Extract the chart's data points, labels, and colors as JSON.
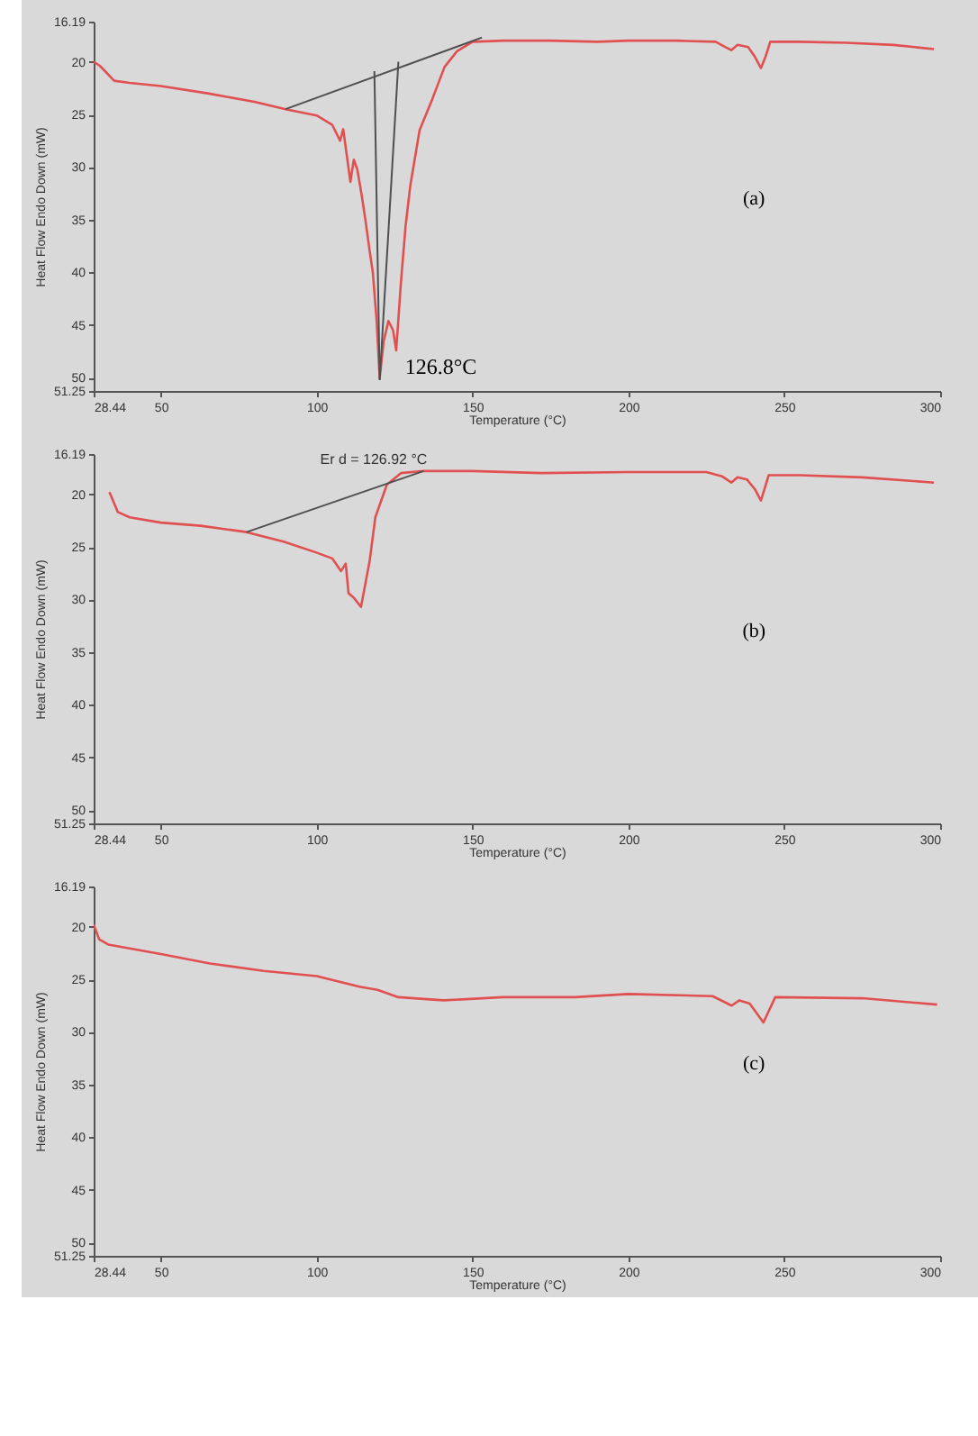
{
  "chart_data": [
    {
      "type": "line",
      "xlabel": "Temperature (°C)",
      "ylabel": "Heat Flow Endo Down (mW)",
      "series": [
        {
          "color": "#e05050",
          "x": [
            28.44,
            30.5,
            35,
            40,
            50,
            65,
            80,
            90,
            100,
            105,
            107.5,
            108.5,
            109.7,
            110.8,
            111.9,
            113,
            114.5,
            115.8,
            117,
            118,
            119.2,
            120.2,
            121.5,
            123,
            124.5,
            125.5,
            127,
            128.5,
            130,
            133,
            137,
            141,
            145,
            150,
            160,
            175,
            190,
            200,
            215,
            228,
            231,
            233,
            235,
            238.4,
            240.5,
            242.5,
            244,
            245.5,
            255,
            270,
            285,
            298
          ],
          "values": [
            20.0,
            20.4,
            21.8,
            22.0,
            22.3,
            23.0,
            23.8,
            24.5,
            25.1,
            26.0,
            27.5,
            26.4,
            29.0,
            31.4,
            29.3,
            30.2,
            32.8,
            35.4,
            38.0,
            40.0,
            44.5,
            50.0,
            46.5,
            44.6,
            45.5,
            47.4,
            41.0,
            35.6,
            31.8,
            26.5,
            23.6,
            20.5,
            19.0,
            18.1,
            18.0,
            18.0,
            18.1,
            18.0,
            18.0,
            18.1,
            18.6,
            18.9,
            18.4,
            18.6,
            19.5,
            20.6,
            19.5,
            18.1,
            18.1,
            18.2,
            18.4,
            18.8
          ]
        },
        {
          "color": "#505050",
          "x": [
            90,
            153
          ],
          "values": [
            24.5,
            17.7
          ]
        },
        {
          "color": "#505050",
          "x": [
            118.5,
            120.2
          ],
          "values": [
            20.9,
            50.2
          ]
        },
        {
          "color": "#505050",
          "x": [
            126.2,
            120.2
          ],
          "values": [
            20.0,
            50.2
          ]
        }
      ],
      "annotations": [
        {
          "text": "126.8°C",
          "x": 120.2,
          "y": 50.0
        },
        "(a)"
      ],
      "xlim": [
        28.44,
        300
      ],
      "xticks": [
        28.44,
        50,
        100,
        150,
        200,
        250,
        300
      ],
      "ylim": [
        51.25,
        16.19
      ],
      "yticks": [
        16.19,
        20,
        25,
        30,
        35,
        40,
        45,
        50,
        51.25
      ]
    },
    {
      "type": "line",
      "xlabel": "Temperature (°C)",
      "ylabel": "Heat Flow Endo Down (mW)",
      "series": [
        {
          "color": "#e05050",
          "x": [
            33.5,
            36.2,
            40,
            50,
            62.8,
            77.5,
            89.4,
            99.5,
            105,
            107.8,
            109.3,
            110.2,
            111.8,
            114.2,
            117,
            118.8,
            122.5,
            127,
            134.3,
            150,
            172,
            200,
            225,
            230,
            233,
            235,
            238,
            240.5,
            242.5,
            245,
            255,
            275,
            298
          ],
          "values": [
            19.8,
            21.7,
            22.2,
            22.7,
            23.0,
            23.6,
            24.5,
            25.5,
            26.1,
            27.3,
            26.6,
            29.4,
            29.8,
            30.7,
            26.3,
            22.2,
            19.1,
            18.0,
            17.8,
            17.8,
            18.0,
            17.9,
            17.9,
            18.3,
            18.9,
            18.4,
            18.6,
            19.5,
            20.6,
            18.2,
            18.2,
            18.4,
            18.9
          ]
        },
        {
          "color": "#505050",
          "x": [
            77.5,
            134.3
          ],
          "values": [
            23.6,
            17.8
          ]
        }
      ],
      "annotations": [
        {
          "text": "Er d = 126.92 °C",
          "x": 134.3,
          "y": 17.8
        },
        "(b)"
      ],
      "xlim": [
        28.44,
        300
      ],
      "xticks": [
        28.44,
        50,
        100,
        150,
        200,
        250,
        300
      ],
      "ylim": [
        51.25,
        16.19
      ],
      "yticks": [
        16.19,
        20,
        25,
        30,
        35,
        40,
        45,
        50,
        51.25
      ]
    },
    {
      "type": "line",
      "xlabel": "Temperature (°C)",
      "ylabel": "Heat Flow Endo Down (mW)",
      "series": [
        {
          "color": "#e05050",
          "x": [
            28.44,
            30.2,
            33.1,
            50,
            65.7,
            83,
            100,
            113.7,
            119.5,
            126.2,
            140.6,
            159.8,
            182.8,
            200,
            227,
            233.1,
            235.6,
            238.9,
            243.3,
            247.1,
            275,
            299
          ],
          "values": [
            19.8,
            21.2,
            21.7,
            22.6,
            23.5,
            24.2,
            24.7,
            25.7,
            26.0,
            26.7,
            27.0,
            26.7,
            26.7,
            26.4,
            26.6,
            27.5,
            27.0,
            27.3,
            29.1,
            26.7,
            26.8,
            27.4
          ]
        }
      ],
      "annotations": [
        "(c)"
      ],
      "xlim": [
        28.44,
        300
      ],
      "xticks": [
        28.44,
        50,
        100,
        150,
        200,
        250,
        300
      ],
      "ylim": [
        51.25,
        16.19
      ],
      "yticks": [
        16.19,
        20,
        25,
        30,
        35,
        40,
        45,
        50,
        51.25
      ]
    }
  ]
}
